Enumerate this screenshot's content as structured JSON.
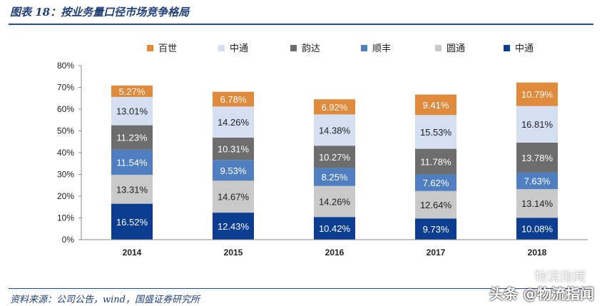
{
  "header": {
    "title": "图表 18：按业务量口径市场竞争格局"
  },
  "footer": {
    "source": "资料来源：公司公告，wind，国盛证券研究所",
    "watermark": "头条 @物流指闻",
    "watermark_secondary": "物流指闻"
  },
  "chart_data": {
    "type": "bar",
    "stacked": true,
    "categories": [
      "2014",
      "2015",
      "2016",
      "2017",
      "2018"
    ],
    "ylim": [
      0,
      80
    ],
    "yticks": [
      "0%",
      "10%",
      "20%",
      "30%",
      "40%",
      "50%",
      "60%",
      "70%",
      "80%"
    ],
    "legend_position": "top",
    "grid": false,
    "series": [
      {
        "name": "中通",
        "color": "#0b3d91",
        "label_color": "#ffffff",
        "values": [
          16.52,
          12.43,
          10.42,
          9.73,
          10.08
        ],
        "labels": [
          "16.52%",
          "12.43%",
          "10.42%",
          "9.73%",
          "10.08%"
        ]
      },
      {
        "name": "圆通",
        "color": "#c9c9c9",
        "label_color": "#222222",
        "values": [
          13.31,
          14.67,
          14.26,
          12.64,
          13.14
        ],
        "labels": [
          "13.31%",
          "14.67%",
          "14.26%",
          "12.64%",
          "13.14%"
        ]
      },
      {
        "name": "顺丰",
        "color": "#4f7fc0",
        "label_color": "#ffffff",
        "values": [
          11.54,
          9.53,
          8.25,
          7.62,
          7.63
        ],
        "labels": [
          "11.54%",
          "9.53%",
          "8.25%",
          "7.62%",
          "7.63%"
        ]
      },
      {
        "name": "韵达",
        "color": "#6d6d6d",
        "label_color": "#ffffff",
        "values": [
          11.23,
          10.31,
          10.27,
          11.78,
          13.78
        ],
        "labels": [
          "11.23%",
          "10.31%",
          "10.27%",
          "11.78%",
          "13.78%"
        ]
      },
      {
        "name": "中通",
        "color": "#d4e0f2",
        "label_color": "#222222",
        "values": [
          13.01,
          14.26,
          14.38,
          15.53,
          16.81
        ],
        "labels": [
          "13.01%",
          "14.26%",
          "14.38%",
          "15.53%",
          "16.81%"
        ]
      },
      {
        "name": "百世",
        "color": "#e08a3c",
        "label_color": "#ffffff",
        "values": [
          5.27,
          6.78,
          6.92,
          9.41,
          10.79
        ],
        "labels": [
          "5.27%",
          "6.78%",
          "6.92%",
          "9.41%",
          "10.79%"
        ]
      }
    ],
    "legend_order": [
      5,
      4,
      3,
      2,
      1,
      0
    ]
  }
}
